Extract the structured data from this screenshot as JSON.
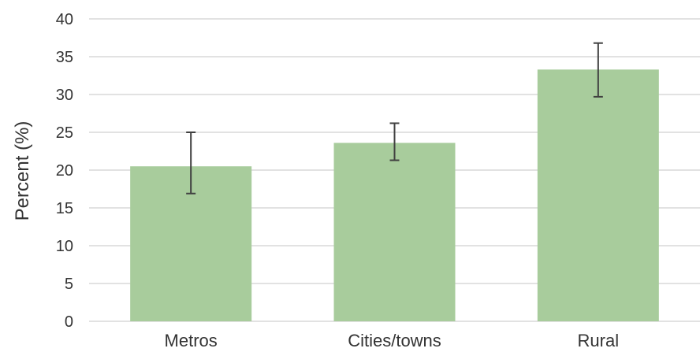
{
  "chart_data": {
    "type": "bar",
    "categories": [
      "Metros",
      "Cities/towns",
      "Rural"
    ],
    "values": [
      20.5,
      23.6,
      33.3
    ],
    "error_low": [
      16.9,
      21.3,
      29.7
    ],
    "error_high": [
      25.0,
      26.2,
      36.8
    ],
    "ylabel": "Percent (%)",
    "ylim": [
      0,
      40
    ],
    "yticks": [
      0,
      5,
      10,
      15,
      20,
      25,
      30,
      35,
      40
    ],
    "grid": true,
    "bar_color": "#a8cc9c"
  }
}
